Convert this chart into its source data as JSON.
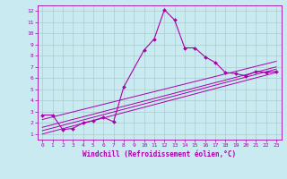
{
  "xlabel": "Windchill (Refroidissement éolien,°C)",
  "bg_color": "#c8eaf0",
  "grid_color": "#aacccc",
  "line_color": "#aa00aa",
  "xlim": [
    -0.5,
    23.5
  ],
  "ylim": [
    0.5,
    12.5
  ],
  "xticks": [
    0,
    1,
    2,
    3,
    4,
    5,
    6,
    7,
    8,
    9,
    10,
    11,
    12,
    13,
    14,
    15,
    16,
    17,
    18,
    19,
    20,
    21,
    22,
    23
  ],
  "yticks": [
    1,
    2,
    3,
    4,
    5,
    6,
    7,
    8,
    9,
    10,
    11,
    12
  ],
  "main_x": [
    0,
    1,
    2,
    3,
    4,
    5,
    6,
    7,
    8,
    10,
    11,
    12,
    13,
    14,
    15,
    16,
    17,
    18,
    19,
    20,
    21,
    22,
    23
  ],
  "main_y": [
    2.7,
    2.7,
    1.4,
    1.5,
    2.0,
    2.2,
    2.5,
    2.1,
    5.2,
    8.5,
    9.5,
    12.1,
    11.2,
    8.7,
    8.7,
    7.9,
    7.4,
    6.5,
    6.4,
    6.2,
    6.6,
    6.5,
    6.6
  ],
  "diag_lines": [
    {
      "x": [
        0,
        23
      ],
      "y": [
        1.0,
        6.5
      ]
    },
    {
      "x": [
        0,
        23
      ],
      "y": [
        1.3,
        6.8
      ]
    },
    {
      "x": [
        0,
        23
      ],
      "y": [
        1.6,
        7.0
      ]
    },
    {
      "x": [
        0,
        23
      ],
      "y": [
        2.3,
        7.5
      ]
    }
  ],
  "tick_fontsize": 4.5,
  "xlabel_fontsize": 5.5
}
